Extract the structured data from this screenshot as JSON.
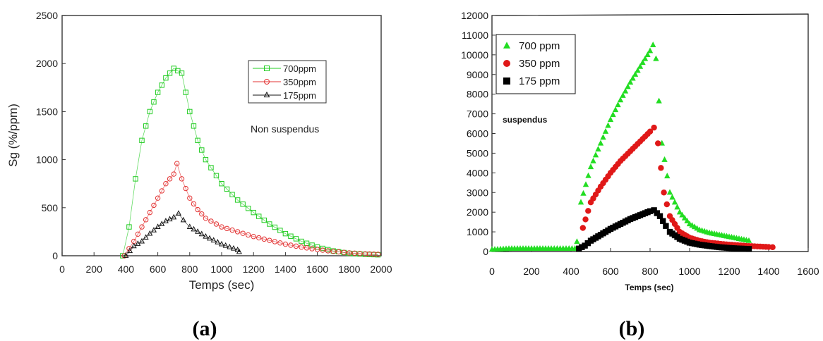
{
  "chart_data": [
    {
      "panel_label": "(a)",
      "type": "scatter",
      "title": "",
      "xlabel": "Temps (sec)",
      "ylabel": "Sg (%/ppm)",
      "xlim": [
        0,
        2000
      ],
      "ylim": [
        0,
        2500
      ],
      "xticks": [
        "0",
        "200",
        "400",
        "600",
        "800",
        "1000",
        "1200",
        "1400",
        "1600",
        "1800",
        "2000"
      ],
      "yticks": [
        "0",
        "500",
        "1000",
        "1500",
        "2000",
        "2500"
      ],
      "grid": false,
      "legend_position": "top-right",
      "annotation": "Non suspendus",
      "series": [
        {
          "name": "700ppm",
          "color": "#22cc22",
          "marker": "square-open",
          "points": [
            [
              380,
              0
            ],
            [
              420,
              300
            ],
            [
              460,
              800
            ],
            [
              500,
              1200
            ],
            [
              550,
              1500
            ],
            [
              600,
              1700
            ],
            [
              650,
              1850
            ],
            [
              700,
              1950
            ],
            [
              750,
              1900
            ],
            [
              800,
              1500
            ],
            [
              850,
              1200
            ],
            [
              900,
              1000
            ],
            [
              1000,
              750
            ],
            [
              1100,
              580
            ],
            [
              1200,
              450
            ],
            [
              1300,
              330
            ],
            [
              1400,
              230
            ],
            [
              1500,
              150
            ],
            [
              1600,
              90
            ],
            [
              1700,
              50
            ],
            [
              1800,
              25
            ],
            [
              1900,
              15
            ],
            [
              1980,
              10
            ]
          ]
        },
        {
          "name": "350ppm",
          "color": "#e33333",
          "marker": "circle-open",
          "points": [
            [
              390,
              0
            ],
            [
              450,
              150
            ],
            [
              500,
              300
            ],
            [
              550,
              450
            ],
            [
              600,
              600
            ],
            [
              650,
              750
            ],
            [
              700,
              850
            ],
            [
              720,
              960
            ],
            [
              750,
              800
            ],
            [
              800,
              600
            ],
            [
              850,
              480
            ],
            [
              900,
              390
            ],
            [
              1000,
              300
            ],
            [
              1100,
              250
            ],
            [
              1200,
              200
            ],
            [
              1300,
              160
            ],
            [
              1400,
              120
            ],
            [
              1500,
              90
            ],
            [
              1600,
              65
            ],
            [
              1700,
              45
            ],
            [
              1800,
              30
            ],
            [
              1900,
              20
            ],
            [
              1980,
              15
            ]
          ]
        },
        {
          "name": "175ppm",
          "color": "#111111",
          "marker": "triangle-open",
          "points": [
            [
              400,
              0
            ],
            [
              450,
              100
            ],
            [
              500,
              150
            ],
            [
              550,
              230
            ],
            [
              600,
              300
            ],
            [
              650,
              360
            ],
            [
              700,
              400
            ],
            [
              730,
              440
            ],
            [
              760,
              370
            ],
            [
              800,
              300
            ],
            [
              850,
              250
            ],
            [
              900,
              200
            ],
            [
              950,
              160
            ],
            [
              1000,
              120
            ],
            [
              1050,
              90
            ],
            [
              1100,
              60
            ],
            [
              1110,
              40
            ]
          ]
        }
      ]
    },
    {
      "panel_label": "(b)",
      "type": "scatter",
      "title": "",
      "xlabel": "Temps (sec)",
      "ylabel": "",
      "xlim": [
        0,
        1600
      ],
      "ylim": [
        0,
        12000
      ],
      "xticks": [
        "0",
        "200",
        "400",
        "600",
        "800",
        "1000",
        "1200",
        "1400",
        "1600"
      ],
      "yticks": [
        "0",
        "1000",
        "2000",
        "3000",
        "4000",
        "5000",
        "6000",
        "7000",
        "8000",
        "9000",
        "10000",
        "11000",
        "12000"
      ],
      "grid": false,
      "legend_position": "top-left",
      "annotation": "suspendus",
      "series": [
        {
          "name": "700 ppm",
          "color": "#22dd22",
          "marker": "triangle-filled",
          "points": [
            [
              0,
              100
            ],
            [
              100,
              150
            ],
            [
              200,
              150
            ],
            [
              300,
              150
            ],
            [
              420,
              150
            ],
            [
              430,
              500
            ],
            [
              450,
              2500
            ],
            [
              500,
              4300
            ],
            [
              550,
              5500
            ],
            [
              600,
              6700
            ],
            [
              650,
              7700
            ],
            [
              700,
              8600
            ],
            [
              750,
              9400
            ],
            [
              800,
              10200
            ],
            [
              815,
              10500
            ],
            [
              830,
              9800
            ],
            [
              860,
              5500
            ],
            [
              900,
              3000
            ],
            [
              950,
              2000
            ],
            [
              1000,
              1400
            ],
            [
              1050,
              1100
            ],
            [
              1100,
              950
            ],
            [
              1150,
              850
            ],
            [
              1200,
              750
            ],
            [
              1250,
              650
            ],
            [
              1300,
              550
            ]
          ]
        },
        {
          "name": "350 ppm",
          "color": "#e01818",
          "marker": "circle-filled",
          "points": [
            [
              440,
              150
            ],
            [
              460,
              1200
            ],
            [
              500,
              2500
            ],
            [
              550,
              3300
            ],
            [
              600,
              4000
            ],
            [
              650,
              4600
            ],
            [
              700,
              5100
            ],
            [
              750,
              5600
            ],
            [
              800,
              6100
            ],
            [
              820,
              6300
            ],
            [
              840,
              5500
            ],
            [
              870,
              3000
            ],
            [
              900,
              1800
            ],
            [
              950,
              1000
            ],
            [
              1000,
              700
            ],
            [
              1050,
              550
            ],
            [
              1100,
              450
            ],
            [
              1200,
              350
            ],
            [
              1300,
              280
            ],
            [
              1400,
              230
            ],
            [
              1420,
              220
            ]
          ]
        },
        {
          "name": "175 ppm",
          "color": "#000000",
          "marker": "square-filled",
          "points": [
            [
              440,
              150
            ],
            [
              470,
              300
            ],
            [
              500,
              550
            ],
            [
              550,
              850
            ],
            [
              600,
              1150
            ],
            [
              650,
              1400
            ],
            [
              700,
              1650
            ],
            [
              750,
              1850
            ],
            [
              800,
              2050
            ],
            [
              820,
              2100
            ],
            [
              850,
              1800
            ],
            [
              880,
              1300
            ],
            [
              900,
              1000
            ],
            [
              950,
              650
            ],
            [
              1000,
              450
            ],
            [
              1050,
              350
            ],
            [
              1100,
              280
            ],
            [
              1150,
              220
            ],
            [
              1200,
              180
            ],
            [
              1250,
              150
            ],
            [
              1300,
              130
            ]
          ]
        }
      ]
    }
  ]
}
